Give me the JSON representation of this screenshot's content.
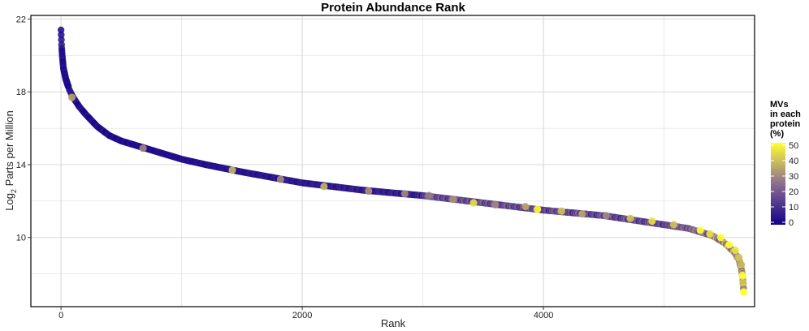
{
  "chart_data": {
    "type": "scatter",
    "title": "Protein Abundance Rank",
    "xlabel": "Rank",
    "ylabel_main": "Log",
    "ylabel_sub": "2",
    "ylabel_rest": " Parts per Million",
    "xlim": [
      -250,
      5750
    ],
    "ylim": [
      6.2,
      22.2
    ],
    "x_ticks": [
      0,
      2000,
      4000
    ],
    "x_tick_labels": [
      "0",
      "2000",
      "4000"
    ],
    "y_ticks": [
      10,
      14,
      18,
      22
    ],
    "y_tick_labels": [
      "10",
      "14",
      "18",
      "22"
    ],
    "x_minor_ticks": [
      1000,
      3000,
      5000
    ],
    "y_minor_ticks": [
      8,
      12,
      16,
      20
    ],
    "grid": true,
    "legend": {
      "title_lines": [
        "MVs",
        "in each",
        "protein",
        "(%)"
      ],
      "ticks": [
        0,
        10,
        20,
        30,
        40,
        50
      ],
      "tick_labels": [
        "0",
        "10",
        "20",
        "30",
        "40",
        "50"
      ],
      "range": [
        0,
        50
      ],
      "placement": "right",
      "color_low": "#12008a",
      "color_mid": "#8c6d8f",
      "color_high": "#ffff33"
    },
    "curve_keypoints": [
      [
        0,
        21.4
      ],
      [
        5,
        20.5
      ],
      [
        10,
        20.0
      ],
      [
        20,
        19.3
      ],
      [
        40,
        18.7
      ],
      [
        70,
        18.1
      ],
      [
        100,
        17.7
      ],
      [
        150,
        17.2
      ],
      [
        200,
        16.8
      ],
      [
        300,
        16.1
      ],
      [
        400,
        15.6
      ],
      [
        500,
        15.3
      ],
      [
        700,
        14.9
      ],
      [
        900,
        14.5
      ],
      [
        1000,
        14.3
      ],
      [
        1200,
        14.0
      ],
      [
        1500,
        13.6
      ],
      [
        2000,
        13.0
      ],
      [
        2500,
        12.6
      ],
      [
        3000,
        12.3
      ],
      [
        3500,
        11.9
      ],
      [
        4000,
        11.5
      ],
      [
        4500,
        11.2
      ],
      [
        5000,
        10.7
      ],
      [
        5200,
        10.5
      ],
      [
        5400,
        10.1
      ],
      [
        5500,
        9.7
      ],
      [
        5580,
        9.2
      ],
      [
        5620,
        8.8
      ],
      [
        5640,
        8.3
      ],
      [
        5650,
        7.9
      ],
      [
        5660,
        7.0
      ]
    ],
    "highlighted_points": [
      {
        "x": 90,
        "y": 17.7,
        "mv": 35
      },
      {
        "x": 680,
        "y": 14.9,
        "mv": 30
      },
      {
        "x": 1420,
        "y": 13.7,
        "mv": 38
      },
      {
        "x": 1820,
        "y": 13.2,
        "mv": 30
      },
      {
        "x": 2180,
        "y": 12.8,
        "mv": 38
      },
      {
        "x": 2550,
        "y": 12.55,
        "mv": 32
      },
      {
        "x": 2850,
        "y": 12.4,
        "mv": 30
      },
      {
        "x": 3050,
        "y": 12.3,
        "mv": 28
      },
      {
        "x": 3250,
        "y": 12.1,
        "mv": 32
      },
      {
        "x": 3420,
        "y": 11.9,
        "mv": 45
      },
      {
        "x": 3600,
        "y": 11.8,
        "mv": 30
      },
      {
        "x": 3850,
        "y": 11.7,
        "mv": 35
      },
      {
        "x": 3950,
        "y": 11.55,
        "mv": 50
      },
      {
        "x": 4150,
        "y": 11.45,
        "mv": 40
      },
      {
        "x": 4320,
        "y": 11.3,
        "mv": 35
      },
      {
        "x": 4520,
        "y": 11.2,
        "mv": 30
      },
      {
        "x": 4720,
        "y": 11.05,
        "mv": 40
      },
      {
        "x": 4900,
        "y": 10.9,
        "mv": 45
      },
      {
        "x": 5080,
        "y": 10.7,
        "mv": 40
      },
      {
        "x": 5300,
        "y": 10.4,
        "mv": 50
      },
      {
        "x": 5380,
        "y": 10.2,
        "mv": 45
      },
      {
        "x": 5470,
        "y": 10.0,
        "mv": 50
      },
      {
        "x": 5540,
        "y": 9.6,
        "mv": 50
      },
      {
        "x": 5590,
        "y": 9.3,
        "mv": 45
      },
      {
        "x": 5620,
        "y": 8.9,
        "mv": 40
      },
      {
        "x": 5640,
        "y": 8.5,
        "mv": 38
      },
      {
        "x": 5650,
        "y": 7.9,
        "mv": 50
      },
      {
        "x": 5655,
        "y": 7.5,
        "mv": 40
      },
      {
        "x": 5660,
        "y": 7.0,
        "mv": 50
      }
    ]
  }
}
